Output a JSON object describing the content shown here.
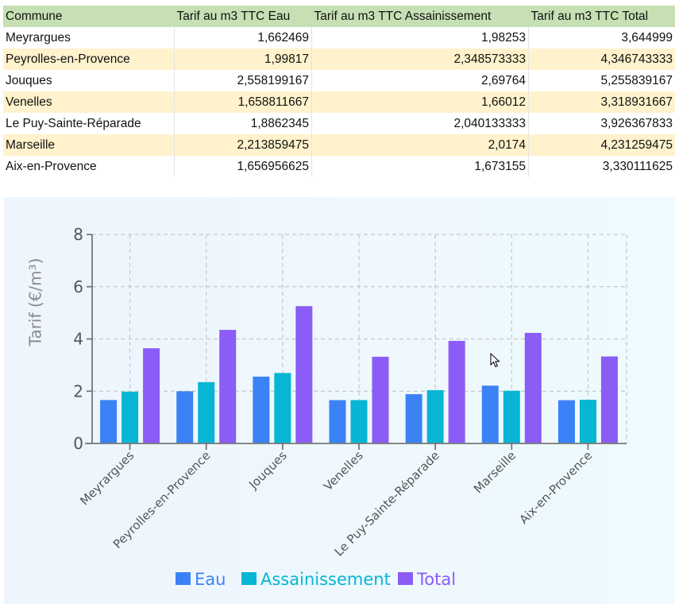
{
  "table": {
    "headers": [
      "Commune",
      "Tarif  au m3 TTC Eau",
      "Tarif au m3 TTC Assainissement",
      "Tarif  au m3 TTC Total"
    ],
    "rows": [
      [
        "Meyrargues",
        "1,662469",
        "1,98253",
        "3,644999"
      ],
      [
        "Peyrolles-en-Provence",
        "1,99817",
        "2,348573333",
        "4,346743333"
      ],
      [
        "Jouques",
        "2,558199167",
        "2,69764",
        "5,255839167"
      ],
      [
        "Venelles",
        "1,658811667",
        "1,66012",
        "3,318931667"
      ],
      [
        "Le Puy-Sainte-Réparade",
        "1,8862345",
        "2,040133333",
        "3,926367833"
      ],
      [
        "Marseille",
        "2,213859475",
        "2,0174",
        "4,231259475"
      ],
      [
        "Aix-en-Provence",
        "1,656956625",
        "1,673155",
        "3,330111625"
      ]
    ],
    "colors": {
      "header_bg": "#c6e0b4",
      "alt_row_bg": "#fff2cc"
    }
  },
  "chart_data": {
    "type": "bar",
    "title": "",
    "xlabel": "",
    "ylabel": "Tarif (€/m³)",
    "ylim": [
      0,
      8
    ],
    "yticks": [
      0,
      2,
      4,
      6,
      8
    ],
    "grid": true,
    "legend_position": "bottom-center",
    "categories": [
      "Meyrargues",
      "Peyrolles-en-Provence",
      "Jouques",
      "Venelles",
      "Le Puy-Sainte-Réparade",
      "Marseille",
      "Aix-en-Provence"
    ],
    "series": [
      {
        "name": "Eau",
        "color": "#3b82f6",
        "values": [
          1.662469,
          1.99817,
          2.558199167,
          1.658811667,
          1.8862345,
          2.213859475,
          1.656956625
        ]
      },
      {
        "name": "Assainissement",
        "color": "#06b6d4",
        "values": [
          1.98253,
          2.348573333,
          2.69764,
          1.66012,
          2.040133333,
          2.0174,
          1.673155
        ]
      },
      {
        "name": "Total",
        "color": "#8b5cf6",
        "values": [
          3.644999,
          4.346743333,
          5.255839167,
          3.318931667,
          3.926367833,
          4.231259475,
          3.330111625
        ]
      }
    ]
  }
}
